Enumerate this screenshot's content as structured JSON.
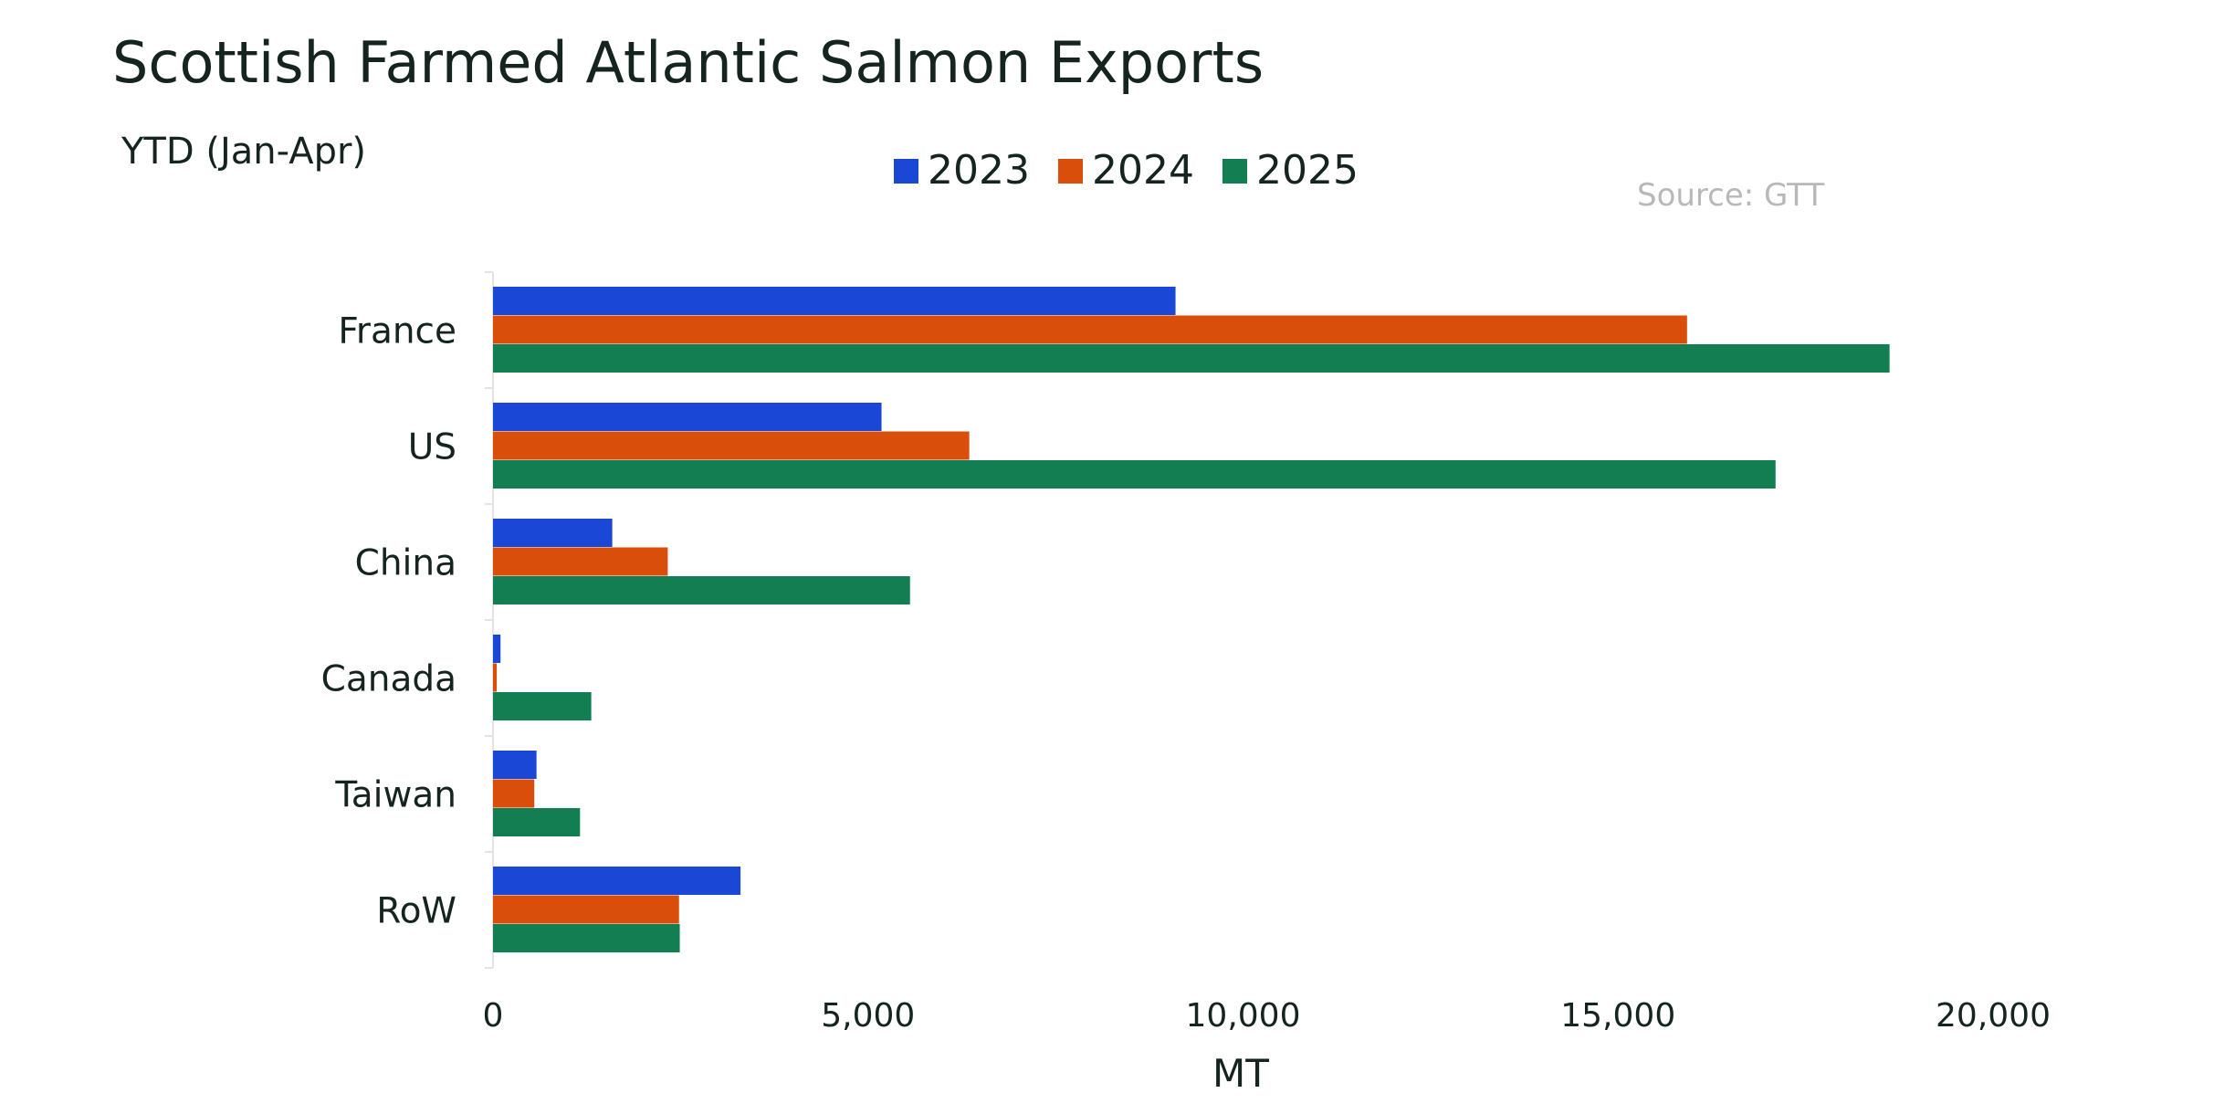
{
  "chart_data": {
    "type": "bar",
    "orientation": "horizontal",
    "title": "Scottish Farmed Atlantic Salmon Exports",
    "subtitle": "YTD (Jan-Apr)",
    "source": "Source: GTT",
    "xlabel": "MT",
    "ylabel": "",
    "xlim": [
      0,
      20000
    ],
    "xticks": [
      0,
      5000,
      10000,
      15000,
      20000
    ],
    "xtick_labels": [
      "0",
      "5,000",
      "10,000",
      "15,000",
      "20,000"
    ],
    "grid": false,
    "legend_position": "top",
    "categories": [
      "France",
      "US",
      "China",
      "Canada",
      "Taiwan",
      "RoW"
    ],
    "series": [
      {
        "name": "2023",
        "color": "#1a47d6",
        "values": [
          9100,
          5180,
          1590,
          100,
          580,
          3300
        ]
      },
      {
        "name": "2024",
        "color": "#d84e0a",
        "values": [
          15920,
          6350,
          2330,
          50,
          550,
          2480
        ]
      },
      {
        "name": "2025",
        "color": "#127e52",
        "values": [
          18620,
          17100,
          5560,
          1310,
          1160,
          2490
        ]
      }
    ]
  }
}
